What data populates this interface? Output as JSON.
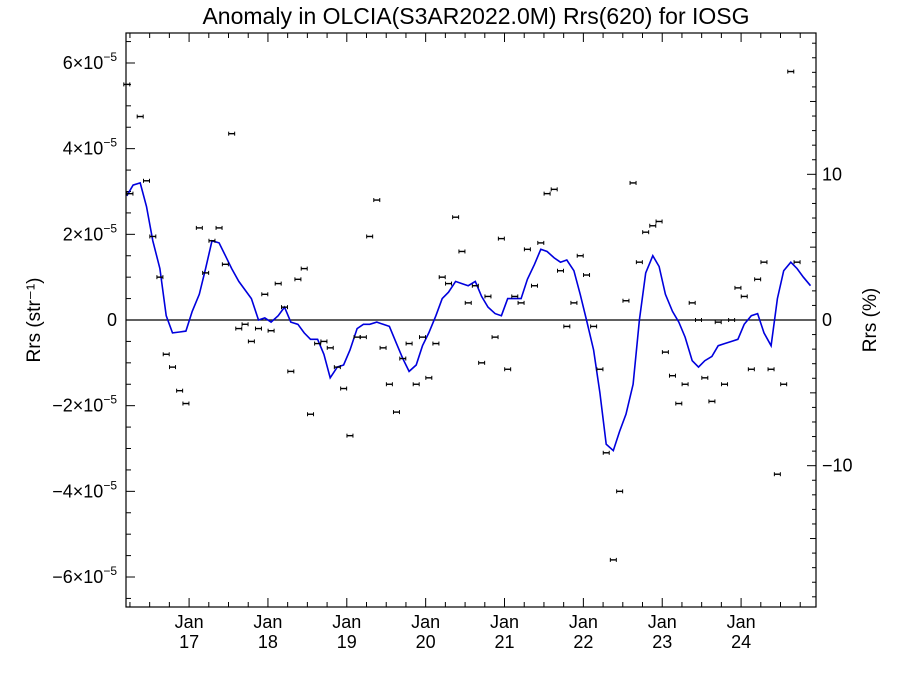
{
  "chart_data": {
    "type": "scatter",
    "title": "Anomaly in OLCIA(S3AR2022.0M) Rrs(620) for IOSG",
    "ylabel_left": "Rrs (str⁻¹)",
    "ylabel_right": "Rrs (%)",
    "xlim": [
      2016.2,
      2024.95
    ],
    "ylim_left": [
      -6.7e-05,
      6.7e-05
    ],
    "ylim_right": [
      -19.7,
      19.7
    ],
    "grid": false,
    "zero_line": true,
    "x_ticks": [
      {
        "x": 2017.0,
        "month": "Jan",
        "year": "17"
      },
      {
        "x": 2018.0,
        "month": "Jan",
        "year": "18"
      },
      {
        "x": 2019.0,
        "month": "Jan",
        "year": "19"
      },
      {
        "x": 2020.0,
        "month": "Jan",
        "year": "20"
      },
      {
        "x": 2021.0,
        "month": "Jan",
        "year": "21"
      },
      {
        "x": 2022.0,
        "month": "Jan",
        "year": "22"
      },
      {
        "x": 2023.0,
        "month": "Jan",
        "year": "23"
      },
      {
        "x": 2024.0,
        "month": "Jan",
        "year": "24"
      }
    ],
    "y_ticks_left": [
      {
        "value": 6e-05,
        "mantissa": "6×10",
        "exp": "−5"
      },
      {
        "value": 4e-05,
        "mantissa": "4×10",
        "exp": "−5"
      },
      {
        "value": 2e-05,
        "mantissa": "2×10",
        "exp": "−5"
      },
      {
        "value": 0,
        "mantissa": "0",
        "exp": ""
      },
      {
        "value": -2e-05,
        "mantissa": "−2×10",
        "exp": "−5"
      },
      {
        "value": -4e-05,
        "mantissa": "−4×10",
        "exp": "−5"
      },
      {
        "value": -6e-05,
        "mantissa": "−6×10",
        "exp": "−5"
      }
    ],
    "y_ticks_right": [
      {
        "value": 10,
        "label": "10"
      },
      {
        "value": 0,
        "label": "0"
      },
      {
        "value": -10,
        "label": "−10"
      }
    ],
    "series": [
      {
        "kind": "points",
        "color": "#000000",
        "x": [
          2016.21,
          2016.25,
          2016.38,
          2016.46,
          2016.54,
          2016.63,
          2016.71,
          2016.79,
          2016.88,
          2016.96,
          2017.13,
          2017.21,
          2017.29,
          2017.38,
          2017.46,
          2017.54,
          2017.63,
          2017.71,
          2017.79,
          2017.88,
          2017.96,
          2018.04,
          2018.13,
          2018.21,
          2018.29,
          2018.38,
          2018.46,
          2018.54,
          2018.63,
          2018.71,
          2018.79,
          2018.88,
          2018.96,
          2019.04,
          2019.13,
          2019.21,
          2019.29,
          2019.38,
          2019.46,
          2019.54,
          2019.63,
          2019.71,
          2019.79,
          2019.88,
          2019.96,
          2020.04,
          2020.13,
          2020.21,
          2020.29,
          2020.38,
          2020.46,
          2020.54,
          2020.63,
          2020.71,
          2020.79,
          2020.88,
          2020.96,
          2021.04,
          2021.13,
          2021.21,
          2021.29,
          2021.38,
          2021.46,
          2021.54,
          2021.63,
          2021.71,
          2021.79,
          2021.88,
          2021.96,
          2022.04,
          2022.13,
          2022.21,
          2022.29,
          2022.38,
          2022.46,
          2022.54,
          2022.63,
          2022.71,
          2022.79,
          2022.88,
          2022.96,
          2023.04,
          2023.13,
          2023.21,
          2023.29,
          2023.38,
          2023.46,
          2023.54,
          2023.63,
          2023.71,
          2023.79,
          2023.88,
          2023.96,
          2024.04,
          2024.13,
          2024.21,
          2024.29,
          2024.38,
          2024.46,
          2024.54,
          2024.63,
          2024.71
        ],
        "y": [
          5.5e-05,
          2.95e-05,
          4.75e-05,
          3.25e-05,
          1.95e-05,
          1e-05,
          -8e-06,
          -1.1e-05,
          -1.65e-05,
          -1.95e-05,
          2.15e-05,
          1.1e-05,
          1.85e-05,
          2.15e-05,
          1.3e-05,
          4.35e-05,
          -2e-06,
          -1e-06,
          -5e-06,
          -2e-06,
          6e-06,
          -2.5e-06,
          8.5e-06,
          3e-06,
          -1.2e-05,
          9.5e-06,
          1.2e-05,
          -2.2e-05,
          -5.5e-06,
          -5e-06,
          -6.5e-06,
          -1.1e-05,
          -1.6e-05,
          -2.7e-05,
          -4e-06,
          -4e-06,
          1.95e-05,
          2.8e-05,
          -6.5e-06,
          -1.5e-05,
          -2.15e-05,
          -9e-06,
          -5.5e-06,
          -1.5e-05,
          -4e-06,
          -1.35e-05,
          -5.5e-06,
          1e-05,
          8.5e-06,
          2.4e-05,
          1.6e-05,
          4e-06,
          8e-06,
          -1e-05,
          5.5e-06,
          -4e-06,
          1.9e-05,
          -1.15e-05,
          5.5e-06,
          4e-06,
          1.65e-05,
          8e-06,
          1.8e-05,
          2.95e-05,
          3.05e-05,
          1.15e-05,
          -1.5e-06,
          4e-06,
          1.5e-05,
          1.05e-05,
          -1.5e-06,
          -1.15e-05,
          -3.1e-05,
          -5.6e-05,
          -4e-05,
          4.5e-06,
          3.2e-05,
          1.35e-05,
          2.05e-05,
          2.2e-05,
          2.3e-05,
          -7.5e-06,
          -1.3e-05,
          -1.95e-05,
          -1.5e-05,
          4e-06,
          0.0,
          -1.35e-05,
          -1.9e-05,
          -5e-07,
          -1.5e-05,
          0.0,
          7.5e-06,
          5.5e-06,
          -1.15e-05,
          9.5e-06,
          1.35e-05,
          -1.15e-05,
          -3.6e-05,
          -1.5e-05,
          5.8e-05,
          1.35e-05
        ]
      },
      {
        "kind": "line",
        "color": "#0000dd",
        "x": [
          2016.21,
          2016.29,
          2016.38,
          2016.46,
          2016.54,
          2016.63,
          2016.71,
          2016.79,
          2016.88,
          2016.96,
          2017.04,
          2017.13,
          2017.21,
          2017.29,
          2017.38,
          2017.46,
          2017.54,
          2017.63,
          2017.71,
          2017.79,
          2017.88,
          2017.96,
          2018.04,
          2018.13,
          2018.21,
          2018.29,
          2018.38,
          2018.46,
          2018.54,
          2018.63,
          2018.71,
          2018.79,
          2018.88,
          2018.96,
          2019.04,
          2019.13,
          2019.21,
          2019.29,
          2019.38,
          2019.46,
          2019.54,
          2019.63,
          2019.71,
          2019.79,
          2019.88,
          2019.96,
          2020.04,
          2020.13,
          2020.21,
          2020.29,
          2020.38,
          2020.46,
          2020.54,
          2020.63,
          2020.71,
          2020.79,
          2020.88,
          2020.96,
          2021.04,
          2021.13,
          2021.21,
          2021.29,
          2021.38,
          2021.46,
          2021.54,
          2021.63,
          2021.71,
          2021.79,
          2021.88,
          2021.96,
          2022.04,
          2022.13,
          2022.21,
          2022.29,
          2022.38,
          2022.46,
          2022.54,
          2022.63,
          2022.71,
          2022.79,
          2022.88,
          2022.96,
          2023.04,
          2023.13,
          2023.21,
          2023.29,
          2023.38,
          2023.46,
          2023.54,
          2023.63,
          2023.71,
          2023.79,
          2023.88,
          2023.96,
          2024.04,
          2024.13,
          2024.21,
          2024.29,
          2024.38,
          2024.46,
          2024.54,
          2024.63,
          2024.71,
          2024.79,
          2024.88
        ],
        "y": [
          2.9e-05,
          3.15e-05,
          3.2e-05,
          2.65e-05,
          1.85e-05,
          1.2e-05,
          1e-06,
          -3e-06,
          -2.8e-06,
          -2.6e-06,
          2e-06,
          6e-06,
          1.2e-05,
          1.85e-05,
          1.8e-05,
          1.5e-05,
          1.2e-05,
          9e-06,
          7e-06,
          5e-06,
          0.0,
          5e-07,
          -5e-07,
          1e-06,
          3e-06,
          -5e-07,
          -1e-06,
          -3e-06,
          -4.5e-06,
          -4.5e-06,
          -8e-06,
          -1.35e-05,
          -1.1e-05,
          -1.05e-05,
          -7e-06,
          -2e-06,
          -1e-06,
          -1e-06,
          -5e-07,
          -1e-06,
          -1.5e-06,
          -5.5e-06,
          -9e-06,
          -1.2e-05,
          -1.05e-05,
          -6e-06,
          -3e-06,
          1e-06,
          5e-06,
          6.5e-06,
          9e-06,
          8.5e-06,
          8e-06,
          9e-06,
          5.5e-06,
          3e-06,
          1.5e-06,
          1e-06,
          5e-06,
          5e-06,
          5e-06,
          9.5e-06,
          1.3e-05,
          1.65e-05,
          1.6e-05,
          1.45e-05,
          1.35e-05,
          1.4e-05,
          1.15e-05,
          6e-06,
          0.0,
          -7e-06,
          -1.7e-05,
          -2.9e-05,
          -3.05e-05,
          -2.6e-05,
          -2.2e-05,
          -1.5e-05,
          0.0,
          1.1e-05,
          1.5e-05,
          1.25e-05,
          6e-06,
          2e-06,
          -5e-07,
          -4e-06,
          -9.5e-06,
          -1.1e-05,
          -9.5e-06,
          -8.5e-06,
          -6e-06,
          -5.5e-06,
          -5e-06,
          -4.5e-06,
          -1e-06,
          1e-06,
          1.5e-06,
          -3e-06,
          -6e-06,
          5e-06,
          1.15e-05,
          1.35e-05,
          1.2e-05,
          1e-05,
          8e-06
        ]
      }
    ]
  }
}
